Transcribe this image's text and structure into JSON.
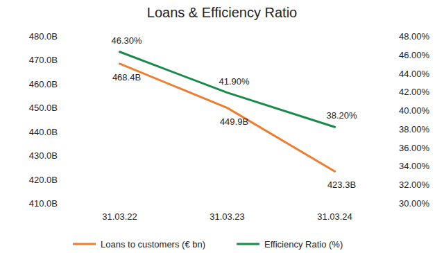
{
  "chart_data": {
    "type": "line",
    "title": "Loans & Efficiency Ratio",
    "categories": [
      "31.03.22",
      "31.03.23",
      "31.03.24"
    ],
    "series": [
      {
        "name": "Loans to customers (€ bn)",
        "color": "#ed7d31",
        "values": [
          468.4,
          449.9,
          423.3
        ],
        "value_labels": [
          "468.4B",
          "449.9B",
          "423.3B"
        ]
      },
      {
        "name": "Efficiency Ratio (%)",
        "color": "#1a8a4b",
        "values": [
          46.3,
          41.9,
          38.2
        ],
        "value_labels": [
          "46.30%",
          "41.90%",
          "38.20%"
        ],
        "axis": "y2"
      }
    ],
    "ylim": [
      410,
      480
    ],
    "yticks": [
      {
        "value": 410,
        "label": "410.0B"
      },
      {
        "value": 420,
        "label": "420.0B"
      },
      {
        "value": 430,
        "label": "430.0B"
      },
      {
        "value": 440,
        "label": "440.0B"
      },
      {
        "value": 450,
        "label": "450.0B"
      },
      {
        "value": 460,
        "label": "460.0B"
      },
      {
        "value": 470,
        "label": "470.0B"
      },
      {
        "value": 480,
        "label": "480.0B"
      }
    ],
    "y2lim": [
      30,
      48
    ],
    "y2ticks": [
      {
        "value": 30,
        "label": "30.00%"
      },
      {
        "value": 32,
        "label": "32.00%"
      },
      {
        "value": 34,
        "label": "34.00%"
      },
      {
        "value": 36,
        "label": "36.00%"
      },
      {
        "value": 38,
        "label": "38.00%"
      },
      {
        "value": 40,
        "label": "40.00%"
      },
      {
        "value": 42,
        "label": "42.00%"
      },
      {
        "value": 44,
        "label": "44.00%"
      },
      {
        "value": 46,
        "label": "46.00%"
      },
      {
        "value": 48,
        "label": "48.00%"
      }
    ],
    "grid": false,
    "legend": "bottom",
    "data_labels": true
  }
}
